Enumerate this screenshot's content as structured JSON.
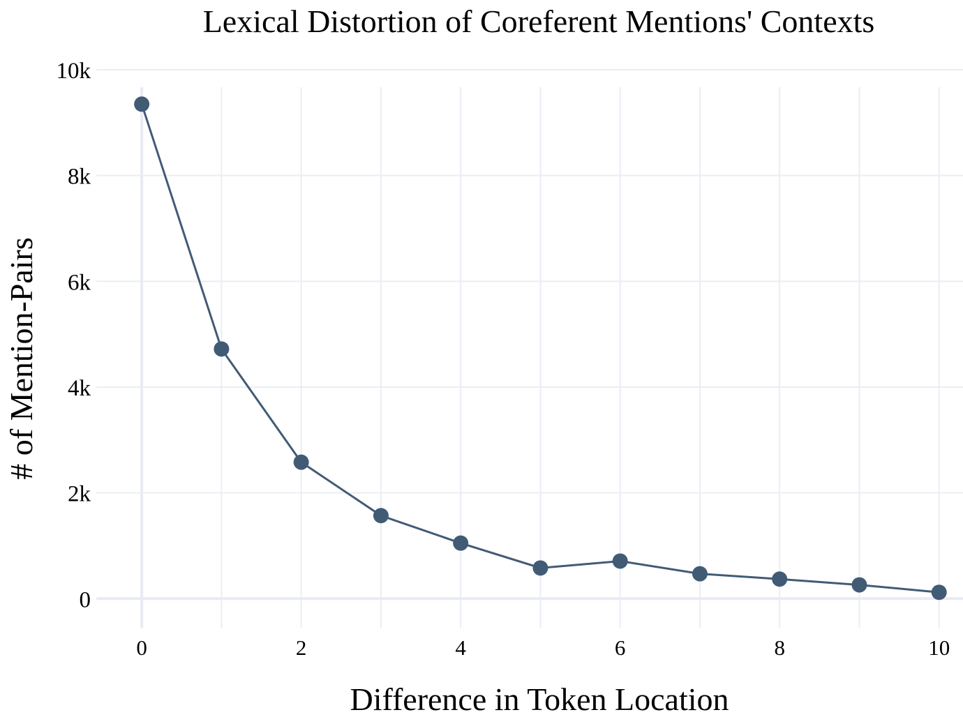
{
  "chart_data": {
    "type": "line",
    "title": "Lexical Distortion of Coreferent Mentions' Contexts",
    "xlabel": "Difference in Token Location",
    "ylabel": "# of Mention-Pairs",
    "x": [
      0,
      1,
      2,
      3,
      4,
      5,
      6,
      7,
      8,
      9,
      10
    ],
    "series": [
      {
        "values": [
          9350,
          4720,
          2580,
          1570,
          1050,
          580,
          710,
          470,
          370,
          260,
          120
        ]
      }
    ],
    "xlim": [
      -0.5,
      10.3
    ],
    "ylim": [
      -550,
      10000
    ],
    "x_ticks": [
      0,
      2,
      4,
      6,
      8,
      10
    ],
    "x_tick_labels": [
      "0",
      "2",
      "4",
      "6",
      "8",
      "10"
    ],
    "y_ticks": [
      0,
      2000,
      4000,
      6000,
      8000,
      10000
    ],
    "y_tick_labels": [
      "0",
      "2k",
      "4k",
      "6k",
      "8k",
      "10k"
    ],
    "grid": true,
    "legend": "none",
    "colors": {
      "series": "#425b75",
      "grid": "#ebedf5",
      "zeroline": "#e9ebf3"
    }
  }
}
